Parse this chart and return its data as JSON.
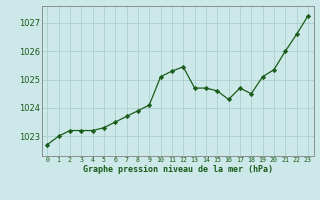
{
  "x": [
    0,
    1,
    2,
    3,
    4,
    5,
    6,
    7,
    8,
    9,
    10,
    11,
    12,
    13,
    14,
    15,
    16,
    17,
    18,
    19,
    20,
    21,
    22,
    23
  ],
  "y": [
    1022.7,
    1023.0,
    1023.2,
    1023.2,
    1023.2,
    1023.3,
    1023.5,
    1023.7,
    1023.9,
    1024.1,
    1025.1,
    1025.3,
    1025.45,
    1024.7,
    1024.7,
    1024.6,
    1024.3,
    1024.7,
    1024.5,
    1025.1,
    1025.35,
    1026.0,
    1026.6,
    1027.25
  ],
  "line_color": "#1a5c1a",
  "marker_color": "#1a5c1a",
  "bg_color": "#cce8e8",
  "grid_color": "#a8c8c8",
  "xlabel": "Graphe pression niveau de la mer (hPa)",
  "xlabel_color": "#1a5c1a",
  "yticks": [
    1023,
    1024,
    1025,
    1026,
    1027
  ],
  "ylim": [
    1022.3,
    1027.6
  ],
  "xlim": [
    -0.5,
    23.5
  ],
  "tick_color": "#1a5c1a",
  "border_color": "#808080"
}
